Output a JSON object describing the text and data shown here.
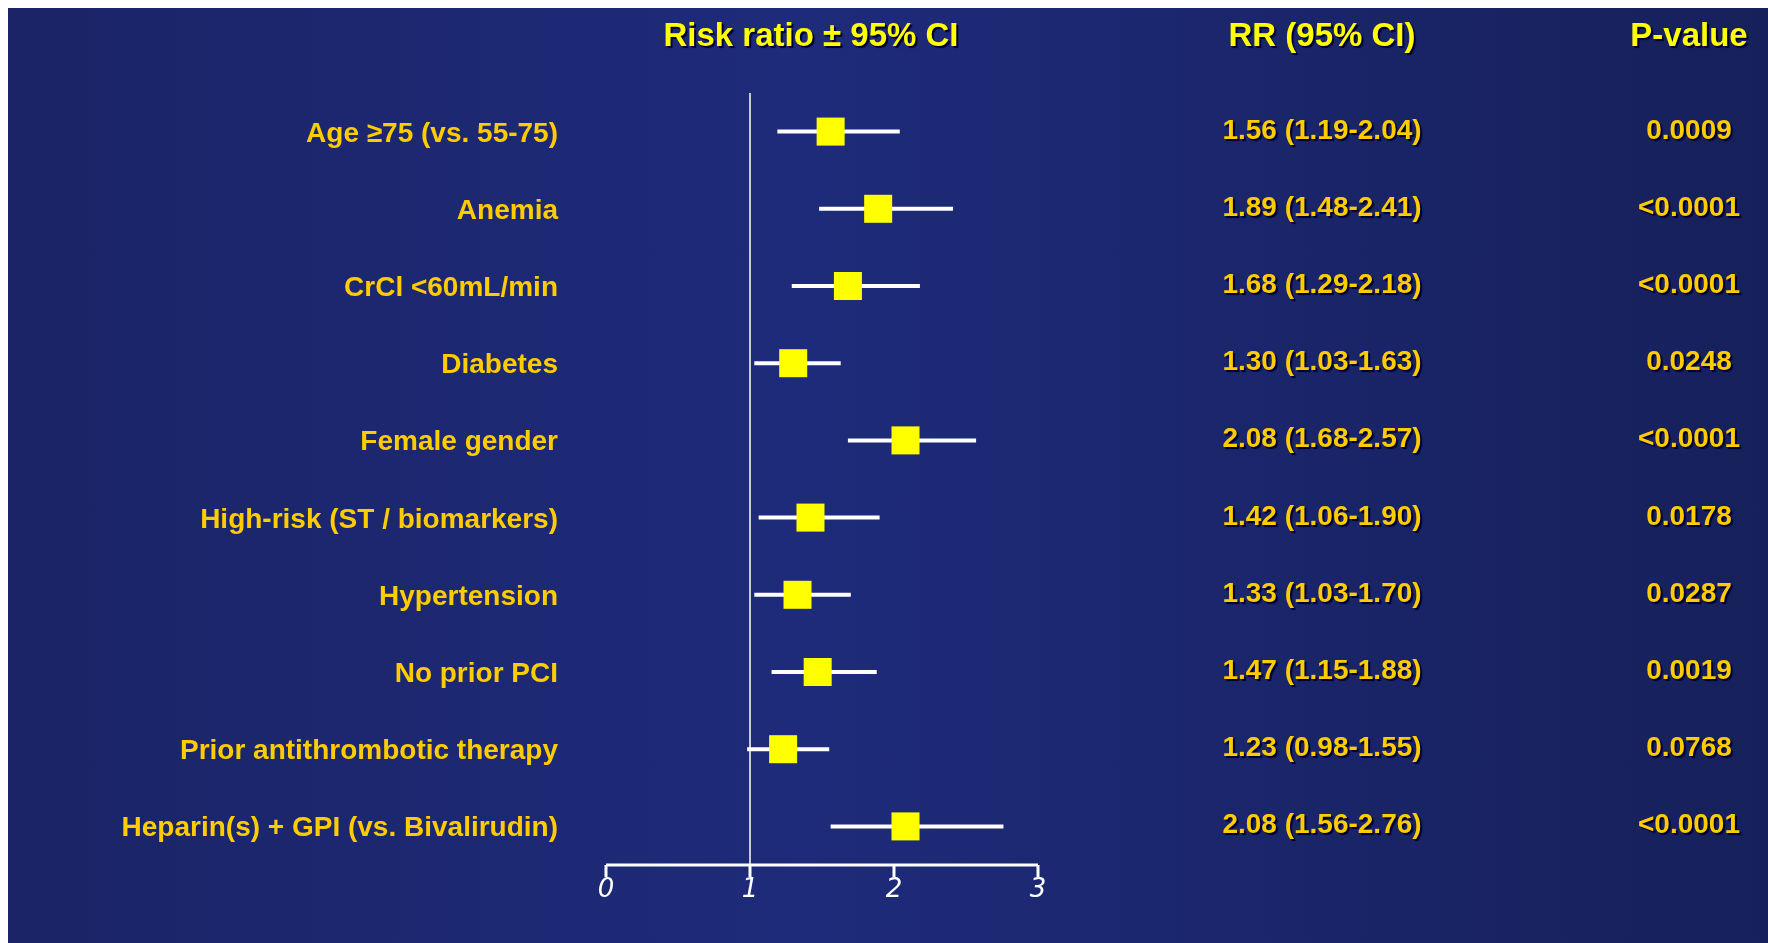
{
  "chart_data": {
    "type": "scatter",
    "orientation": "horizontal",
    "title": "Risk ratio ± 95% CI",
    "categories": [
      "Age ≥75 (vs. 55-75)",
      "Anemia",
      "CrCl <60mL/min",
      "Diabetes",
      "Female gender",
      "High-risk (ST / biomarkers)",
      "Hypertension",
      "No prior PCI",
      "Prior antithrombotic therapy",
      "Heparin(s) + GPI (vs. Bivalirudin)"
    ],
    "values": [
      1.56,
      1.89,
      1.68,
      1.3,
      2.08,
      1.42,
      1.33,
      1.47,
      1.23,
      2.08
    ],
    "errors": [
      [
        1.19,
        2.04
      ],
      [
        1.48,
        2.41
      ],
      [
        1.29,
        2.18
      ],
      [
        1.03,
        1.63
      ],
      [
        1.68,
        2.57
      ],
      [
        1.06,
        1.9
      ],
      [
        1.03,
        1.7
      ],
      [
        1.15,
        1.88
      ],
      [
        0.98,
        1.55
      ],
      [
        1.56,
        2.76
      ]
    ],
    "value_labels": [
      "1.56 (1.19-2.04)",
      "1.89 (1.48-2.41)",
      "1.68 (1.29-2.18)",
      "1.30 (1.03-1.63)",
      "2.08 (1.68-2.57)",
      "1.42 (1.06-1.90)",
      "1.33 (1.03-1.70)",
      "1.47 (1.15-1.88)",
      "1.23 (0.98-1.55)",
      "2.08 (1.56-2.76)"
    ],
    "annotations": [
      "RR (95% CI)",
      "P-value",
      "0.0009",
      "<0.0001",
      "<0.0001",
      "0.0248",
      "<0.0001",
      "0.0178",
      "0.0287",
      "0.0019",
      "0.0768",
      "<0.0001"
    ],
    "color": "#ffff00",
    "marker": "square",
    "xlim": [
      0,
      3
    ],
    "xticks": [
      0,
      1,
      2,
      3
    ],
    "ref_lines": [
      {
        "axis": "x",
        "value": 1,
        "color": "#ffffff"
      }
    ]
  }
}
